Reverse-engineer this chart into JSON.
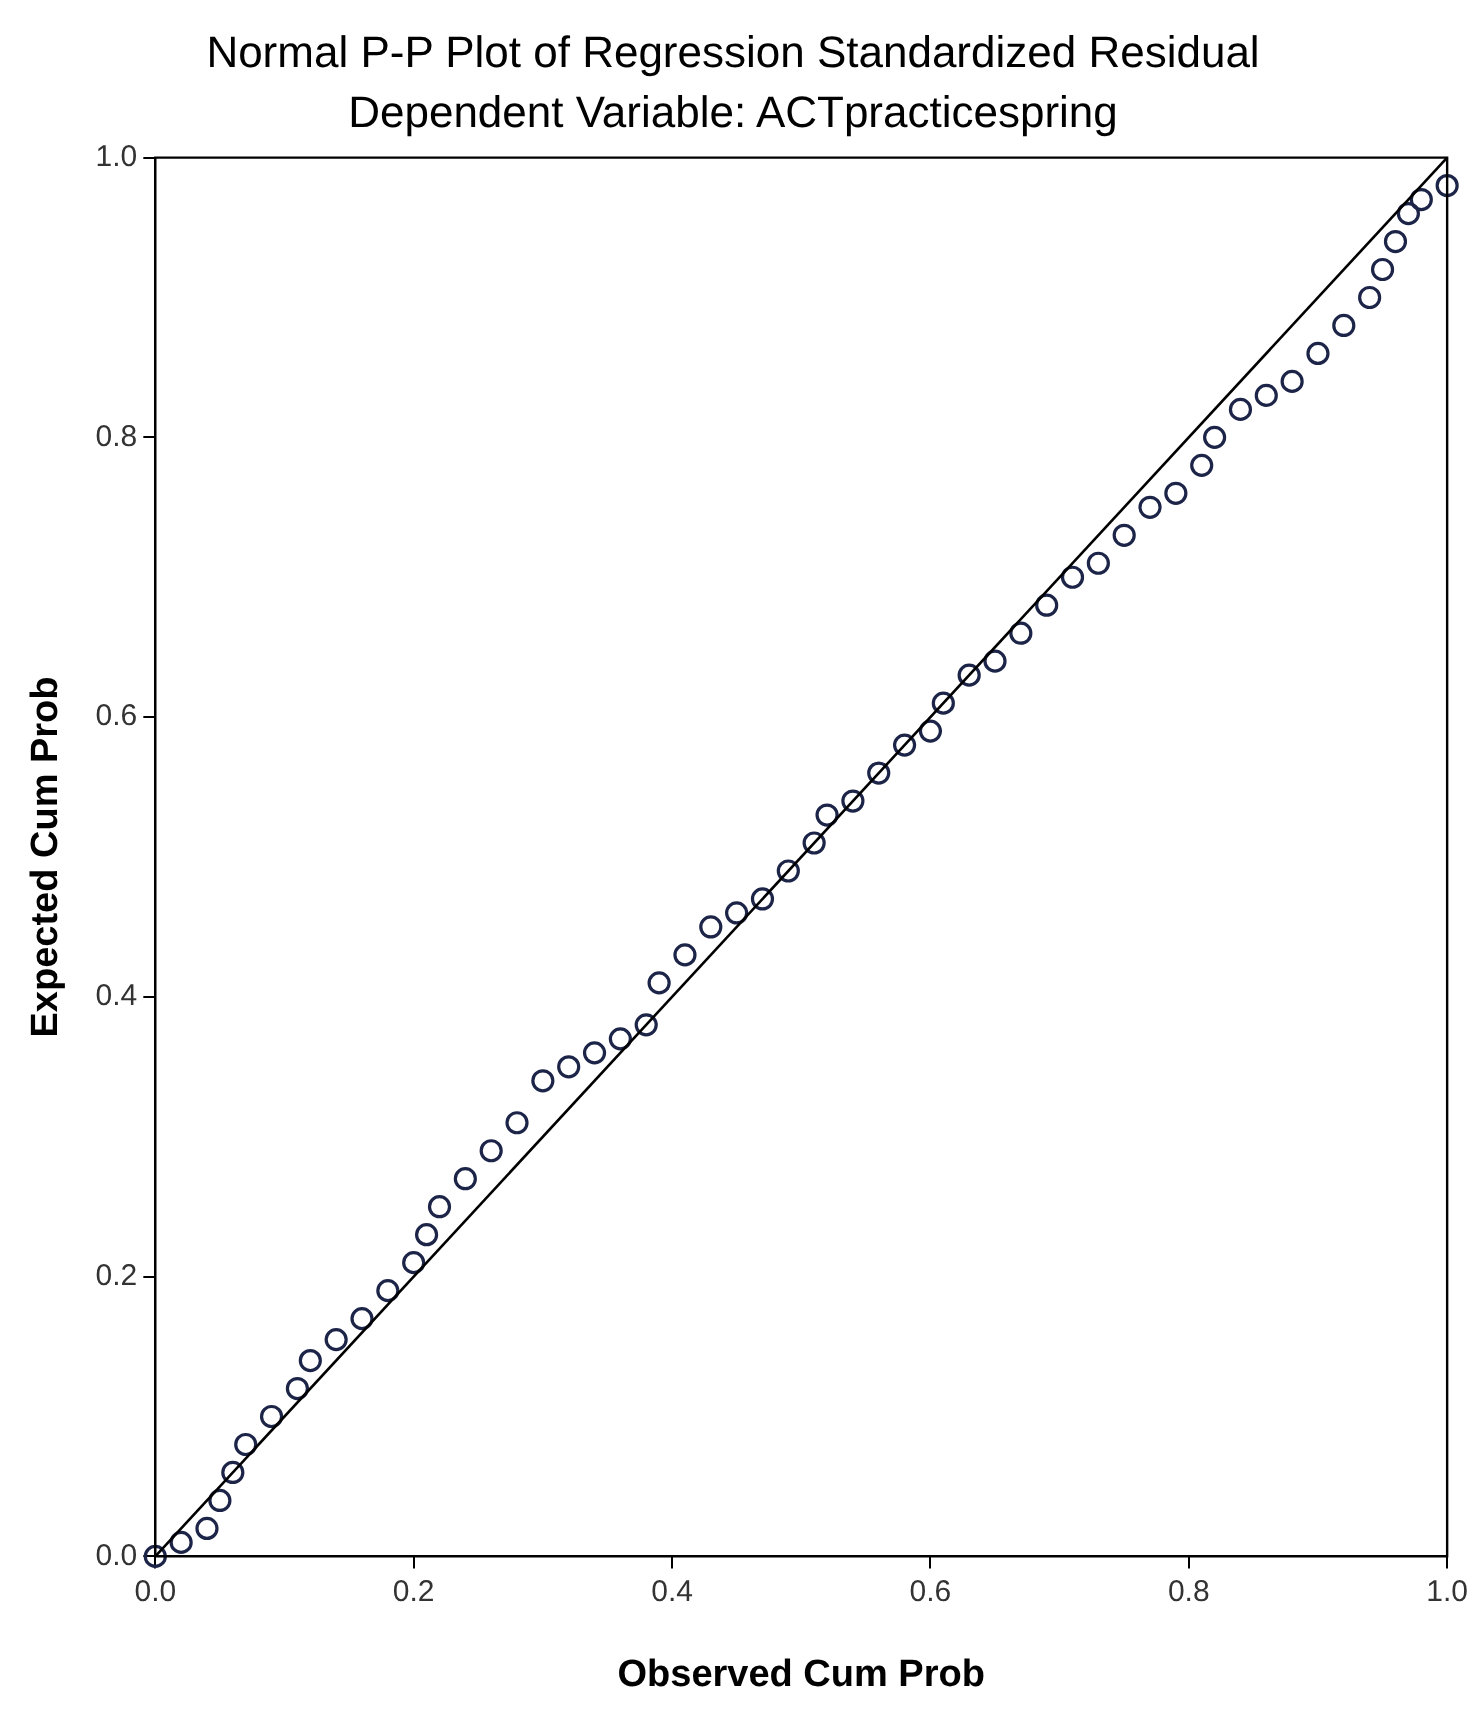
{
  "chart_data": {
    "type": "scatter",
    "title": "Normal P-P Plot of Regression Standardized Residual",
    "subtitle": "Dependent Variable: ACTpracticespring",
    "xlabel": "Observed Cum Prob",
    "ylabel": "Expected Cum Prob",
    "xlim": [
      0,
      1
    ],
    "ylim": [
      0,
      1
    ],
    "xticks": [
      {
        "value": 0,
        "label": "0.0"
      },
      {
        "value": 0.2,
        "label": "0.2"
      },
      {
        "value": 0.4,
        "label": "0.4"
      },
      {
        "value": 0.6,
        "label": "0.6"
      },
      {
        "value": 0.8,
        "label": "0.8"
      },
      {
        "value": 1,
        "label": "1.0"
      }
    ],
    "yticks": [
      {
        "value": 0,
        "label": "0.0"
      },
      {
        "value": 0.2,
        "label": "0.2"
      },
      {
        "value": 0.4,
        "label": "0.4"
      },
      {
        "value": 0.6,
        "label": "0.6"
      },
      {
        "value": 0.8,
        "label": "0.8"
      },
      {
        "value": 1,
        "label": "1.0"
      }
    ],
    "grid": false,
    "legend": false,
    "marker": "circle",
    "series": [
      {
        "color": "#1c2448",
        "x": [
          0.0,
          0.02,
          0.04,
          0.05,
          0.06,
          0.07,
          0.09,
          0.11,
          0.12,
          0.14,
          0.16,
          0.18,
          0.2,
          0.21,
          0.22,
          0.24,
          0.26,
          0.28,
          0.3,
          0.32,
          0.34,
          0.36,
          0.38,
          0.39,
          0.41,
          0.43,
          0.45,
          0.47,
          0.49,
          0.51,
          0.52,
          0.54,
          0.56,
          0.58,
          0.6,
          0.61,
          0.63,
          0.65,
          0.67,
          0.69,
          0.71,
          0.73,
          0.75,
          0.77,
          0.79,
          0.81,
          0.82,
          0.84,
          0.86,
          0.88,
          0.9,
          0.92,
          0.94,
          0.95,
          0.96,
          0.97,
          0.98,
          1.0
        ],
        "values": [
          0.0,
          0.01,
          0.02,
          0.04,
          0.06,
          0.08,
          0.1,
          0.12,
          0.14,
          0.155,
          0.17,
          0.19,
          0.21,
          0.23,
          0.25,
          0.27,
          0.29,
          0.31,
          0.34,
          0.35,
          0.36,
          0.37,
          0.38,
          0.41,
          0.43,
          0.45,
          0.46,
          0.47,
          0.49,
          0.51,
          0.53,
          0.54,
          0.56,
          0.58,
          0.59,
          0.61,
          0.63,
          0.64,
          0.66,
          0.68,
          0.7,
          0.71,
          0.73,
          0.75,
          0.76,
          0.78,
          0.8,
          0.82,
          0.83,
          0.84,
          0.86,
          0.88,
          0.9,
          0.92,
          0.94,
          0.96,
          0.97,
          0.98
        ]
      },
      {
        "type": "line",
        "color": "#000000",
        "marker": "none",
        "x": [
          0,
          1
        ],
        "values": [
          0,
          1
        ]
      }
    ]
  }
}
